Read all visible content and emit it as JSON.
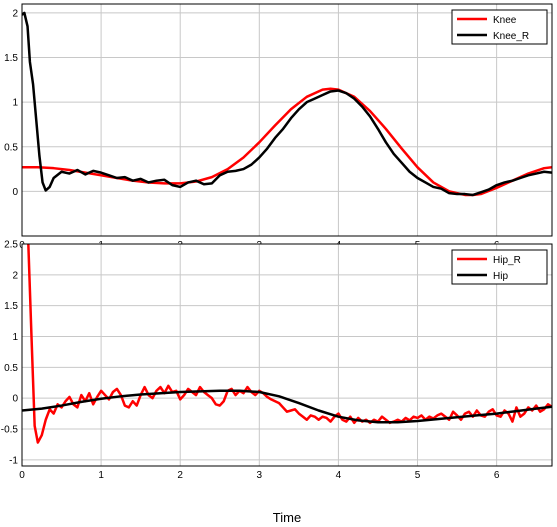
{
  "chart_data": [
    {
      "type": "line",
      "title": "",
      "xlabel": "",
      "ylabel": "",
      "xlim": [
        0,
        6.7
      ],
      "ylim": [
        -0.5,
        2.1
      ],
      "xticks": [
        "0",
        "1",
        "2",
        "3",
        "4",
        "5",
        "6"
      ],
      "yticks": [
        "0",
        "0.5",
        "1",
        "1.5",
        "2"
      ],
      "grid": true,
      "legend_position": "top-right",
      "series": [
        {
          "name": "Knee",
          "color": "#ff0000",
          "x": [
            0,
            0.2,
            0.4,
            0.6,
            0.8,
            1.0,
            1.2,
            1.4,
            1.6,
            1.8,
            2.0,
            2.2,
            2.4,
            2.6,
            2.8,
            3.0,
            3.2,
            3.4,
            3.6,
            3.8,
            3.9,
            4.0,
            4.2,
            4.4,
            4.6,
            4.8,
            5.0,
            5.2,
            5.4,
            5.6,
            5.7,
            5.8,
            6.0,
            6.2,
            6.4,
            6.6,
            6.7
          ],
          "y": [
            0.27,
            0.27,
            0.26,
            0.24,
            0.21,
            0.18,
            0.15,
            0.12,
            0.1,
            0.09,
            0.09,
            0.11,
            0.16,
            0.25,
            0.38,
            0.55,
            0.74,
            0.92,
            1.06,
            1.14,
            1.15,
            1.14,
            1.06,
            0.9,
            0.7,
            0.48,
            0.27,
            0.1,
            0.0,
            -0.04,
            -0.04,
            -0.03,
            0.04,
            0.12,
            0.2,
            0.26,
            0.27
          ]
        },
        {
          "name": "Knee_R",
          "color": "#000000",
          "x": [
            0.0,
            0.03,
            0.07,
            0.1,
            0.14,
            0.18,
            0.22,
            0.26,
            0.3,
            0.35,
            0.4,
            0.5,
            0.6,
            0.7,
            0.8,
            0.9,
            1.0,
            1.1,
            1.2,
            1.3,
            1.4,
            1.5,
            1.6,
            1.7,
            1.8,
            1.9,
            2.0,
            2.1,
            2.2,
            2.3,
            2.4,
            2.5,
            2.6,
            2.7,
            2.8,
            2.9,
            3.0,
            3.1,
            3.2,
            3.3,
            3.4,
            3.5,
            3.6,
            3.7,
            3.8,
            3.9,
            4.0,
            4.1,
            4.2,
            4.3,
            4.4,
            4.5,
            4.6,
            4.7,
            4.8,
            4.9,
            5.0,
            5.1,
            5.2,
            5.3,
            5.4,
            5.5,
            5.6,
            5.7,
            5.8,
            5.9,
            6.0,
            6.1,
            6.2,
            6.3,
            6.4,
            6.5,
            6.6,
            6.7
          ],
          "y": [
            1.98,
            2.0,
            1.85,
            1.45,
            1.2,
            0.8,
            0.4,
            0.1,
            0.01,
            0.05,
            0.15,
            0.22,
            0.2,
            0.24,
            0.19,
            0.23,
            0.21,
            0.18,
            0.15,
            0.16,
            0.12,
            0.14,
            0.1,
            0.12,
            0.13,
            0.07,
            0.05,
            0.1,
            0.12,
            0.08,
            0.09,
            0.18,
            0.22,
            0.23,
            0.25,
            0.3,
            0.38,
            0.48,
            0.6,
            0.7,
            0.82,
            0.92,
            1.0,
            1.04,
            1.08,
            1.12,
            1.13,
            1.1,
            1.04,
            0.95,
            0.84,
            0.7,
            0.55,
            0.42,
            0.32,
            0.22,
            0.15,
            0.1,
            0.05,
            0.03,
            -0.02,
            -0.03,
            -0.03,
            -0.04,
            -0.01,
            0.02,
            0.07,
            0.1,
            0.12,
            0.15,
            0.18,
            0.2,
            0.22,
            0.21
          ]
        }
      ]
    },
    {
      "type": "line",
      "title": "",
      "xlabel": "Time",
      "ylabel": "",
      "xlim": [
        0,
        6.7
      ],
      "ylim": [
        -1.1,
        2.5
      ],
      "xticks": [
        "0",
        "1",
        "2",
        "3",
        "4",
        "5",
        "6"
      ],
      "yticks": [
        "-1",
        "-0.5",
        "0",
        "0.5",
        "1",
        "1.5",
        "2",
        "2.5"
      ],
      "grid": true,
      "legend_position": "top-right",
      "series": [
        {
          "name": "Hip_R",
          "color": "#ff0000",
          "x": [
            0.08,
            0.12,
            0.16,
            0.2,
            0.25,
            0.3,
            0.35,
            0.4,
            0.45,
            0.5,
            0.55,
            0.6,
            0.65,
            0.7,
            0.75,
            0.8,
            0.85,
            0.9,
            0.95,
            1.0,
            1.05,
            1.1,
            1.15,
            1.2,
            1.25,
            1.3,
            1.35,
            1.4,
            1.45,
            1.5,
            1.55,
            1.6,
            1.65,
            1.7,
            1.75,
            1.8,
            1.85,
            1.9,
            1.95,
            2.0,
            2.05,
            2.1,
            2.15,
            2.2,
            2.25,
            2.3,
            2.35,
            2.4,
            2.45,
            2.5,
            2.55,
            2.6,
            2.65,
            2.7,
            2.75,
            2.8,
            2.85,
            2.9,
            2.95,
            3.0,
            3.05,
            3.1,
            3.15,
            3.2,
            3.25,
            3.3,
            3.35,
            3.4,
            3.45,
            3.5,
            3.55,
            3.6,
            3.65,
            3.7,
            3.75,
            3.8,
            3.85,
            3.9,
            3.95,
            4.0,
            4.05,
            4.1,
            4.15,
            4.2,
            4.25,
            4.3,
            4.35,
            4.4,
            4.45,
            4.5,
            4.55,
            4.6,
            4.65,
            4.7,
            4.75,
            4.8,
            4.85,
            4.9,
            4.95,
            5.0,
            5.05,
            5.1,
            5.15,
            5.2,
            5.25,
            5.3,
            5.35,
            5.4,
            5.45,
            5.5,
            5.55,
            5.6,
            5.65,
            5.7,
            5.75,
            5.8,
            5.85,
            5.9,
            5.95,
            6.0,
            6.05,
            6.1,
            6.15,
            6.2,
            6.25,
            6.3,
            6.35,
            6.4,
            6.45,
            6.5,
            6.55,
            6.6,
            6.65,
            6.7
          ],
          "y": [
            2.5,
            1.0,
            -0.45,
            -0.72,
            -0.6,
            -0.35,
            -0.18,
            -0.25,
            -0.1,
            -0.15,
            -0.05,
            0.02,
            -0.1,
            -0.15,
            0.05,
            -0.05,
            0.08,
            -0.1,
            0.02,
            0.12,
            0.05,
            -0.02,
            0.1,
            0.15,
            0.05,
            -0.12,
            -0.15,
            -0.05,
            -0.12,
            0.05,
            0.18,
            0.05,
            0.0,
            0.12,
            0.18,
            0.08,
            0.2,
            0.1,
            0.12,
            -0.02,
            0.05,
            0.15,
            0.1,
            0.05,
            0.18,
            0.1,
            0.05,
            0.0,
            -0.1,
            -0.12,
            -0.05,
            0.12,
            0.15,
            0.05,
            0.12,
            0.08,
            0.18,
            0.1,
            0.05,
            0.12,
            0.08,
            0.02,
            -0.02,
            -0.05,
            -0.08,
            -0.15,
            -0.22,
            -0.2,
            -0.18,
            -0.25,
            -0.3,
            -0.35,
            -0.28,
            -0.3,
            -0.35,
            -0.3,
            -0.32,
            -0.38,
            -0.3,
            -0.25,
            -0.35,
            -0.38,
            -0.3,
            -0.4,
            -0.32,
            -0.38,
            -0.35,
            -0.4,
            -0.35,
            -0.38,
            -0.3,
            -0.35,
            -0.4,
            -0.38,
            -0.35,
            -0.38,
            -0.32,
            -0.36,
            -0.3,
            -0.32,
            -0.28,
            -0.35,
            -0.3,
            -0.33,
            -0.28,
            -0.25,
            -0.3,
            -0.35,
            -0.22,
            -0.28,
            -0.35,
            -0.25,
            -0.22,
            -0.3,
            -0.2,
            -0.28,
            -0.3,
            -0.22,
            -0.18,
            -0.28,
            -0.3,
            -0.2,
            -0.25,
            -0.38,
            -0.15,
            -0.3,
            -0.25,
            -0.15,
            -0.2,
            -0.12,
            -0.22,
            -0.18,
            -0.1,
            -0.14
          ],
          "note_start": "leaves top of axes near x=0.08"
        },
        {
          "name": "Hip",
          "color": "#000000",
          "x": [
            0,
            0.25,
            0.5,
            0.75,
            1.0,
            1.25,
            1.5,
            1.75,
            2.0,
            2.25,
            2.5,
            2.75,
            3.0,
            3.25,
            3.5,
            3.75,
            4.0,
            4.25,
            4.5,
            4.75,
            5.0,
            5.25,
            5.5,
            5.75,
            6.0,
            6.25,
            6.5,
            6.7
          ],
          "y": [
            -0.2,
            -0.17,
            -0.12,
            -0.06,
            -0.01,
            0.03,
            0.06,
            0.08,
            0.1,
            0.11,
            0.12,
            0.12,
            0.1,
            0.03,
            -0.08,
            -0.2,
            -0.3,
            -0.36,
            -0.39,
            -0.39,
            -0.37,
            -0.34,
            -0.31,
            -0.28,
            -0.25,
            -0.21,
            -0.17,
            -0.14
          ]
        }
      ]
    }
  ]
}
